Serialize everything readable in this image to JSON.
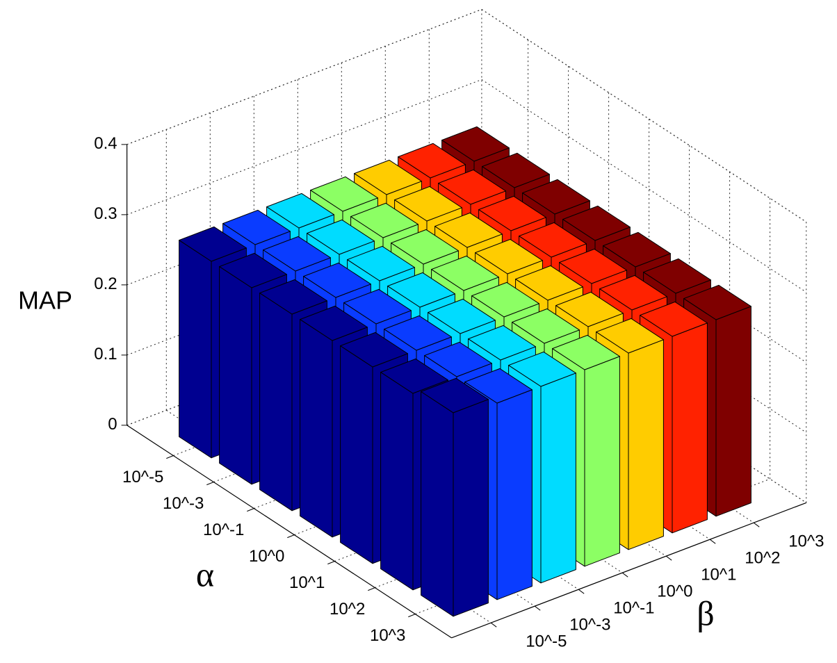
{
  "chart_data": {
    "type": "bar3",
    "zlabel": "MAP",
    "xlabel": "α",
    "ylabel": "β",
    "x_categories": [
      "10^-5",
      "10^-3",
      "10^-1",
      "10^0",
      "10^1",
      "10^2",
      "10^3"
    ],
    "y_categories": [
      "10^-5",
      "10^-3",
      "10^-1",
      "10^0",
      "10^1",
      "10^2",
      "10^3"
    ],
    "zlim": [
      0,
      0.4
    ],
    "zticks": [
      0,
      0.1,
      0.2,
      0.3,
      0.4
    ],
    "grid": true,
    "series": [
      {
        "color": "#000090",
        "values": [
          0.28,
          0.28,
          0.28,
          0.28,
          0.28,
          0.28,
          0.29
        ]
      },
      {
        "color": "#0a3cff",
        "values": [
          0.28,
          0.28,
          0.28,
          0.28,
          0.28,
          0.28,
          0.28
        ]
      },
      {
        "color": "#00dcff",
        "values": [
          0.28,
          0.28,
          0.28,
          0.28,
          0.28,
          0.28,
          0.28
        ]
      },
      {
        "color": "#8cff64",
        "values": [
          0.28,
          0.28,
          0.28,
          0.28,
          0.28,
          0.28,
          0.28
        ]
      },
      {
        "color": "#ffcc00",
        "values": [
          0.28,
          0.28,
          0.28,
          0.28,
          0.28,
          0.28,
          0.28
        ]
      },
      {
        "color": "#ff2200",
        "values": [
          0.28,
          0.28,
          0.28,
          0.28,
          0.28,
          0.28,
          0.28
        ]
      },
      {
        "color": "#7f0000",
        "values": [
          0.28,
          0.28,
          0.28,
          0.28,
          0.28,
          0.28,
          0.28
        ]
      }
    ]
  }
}
